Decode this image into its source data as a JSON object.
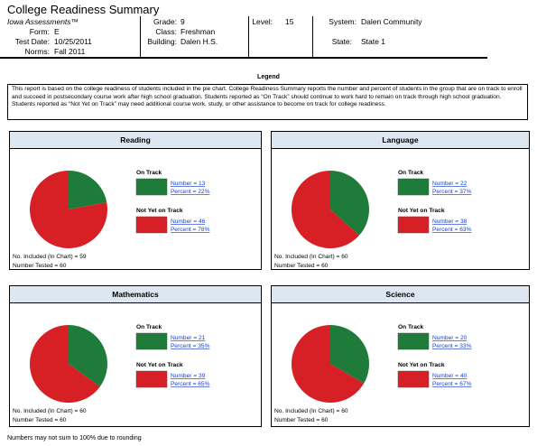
{
  "header": {
    "title": "College Readiness Summary",
    "assessment": "Iowa Assessments™",
    "fields": [
      {
        "label": "Form:",
        "value": "E"
      },
      {
        "label": "Test Date:",
        "value": "10/25/2011"
      },
      {
        "label": "Norms:",
        "value": "Fall 2011"
      },
      {
        "label": "Grade:",
        "value": "9"
      },
      {
        "label": "Class:",
        "value": "Freshman"
      },
      {
        "label": "Building:",
        "value": "Dalen H.S."
      },
      {
        "label": "Level:",
        "value": "15"
      },
      {
        "label": "System:",
        "value": "Dalen Community"
      },
      {
        "label": "State:",
        "value": "State 1"
      }
    ]
  },
  "legend": {
    "title": "Legend",
    "text": "This report is based on the college readiness of students included in the pie chart. College Readiness Summary reports the number and percent of students in the group that are on track to enroll and succeed in postsecondary course work after high school graduation. Students reported as “On Track” should continue to work hard to remain on track through high school graduation. Students reported as “Not Yet on Track” may need additional course work, study, or other assistance to become on track for college readiness."
  },
  "chart_data": [
    {
      "type": "pie",
      "title": "Reading",
      "categories": [
        "On Track",
        "Not Yet on Track"
      ],
      "colors": [
        "#1e7b3a",
        "#d71f26"
      ],
      "values": [
        13,
        46
      ],
      "value_labels": [
        "Number = 13",
        "Number = 46"
      ],
      "percent_labels": [
        "Percent = 22%",
        "Percent = 78%"
      ],
      "included": "No. Included (In Chart) = 59",
      "tested": "Number Tested = 60"
    },
    {
      "type": "pie",
      "title": "Language",
      "categories": [
        "On Track",
        "Not Yet on Track"
      ],
      "colors": [
        "#1e7b3a",
        "#d71f26"
      ],
      "values": [
        22,
        38
      ],
      "value_labels": [
        "Number = 22",
        "Number = 38"
      ],
      "percent_labels": [
        "Percent = 37%",
        "Percent = 63%"
      ],
      "included": "No. Included (In Chart) = 60",
      "tested": "Number Tested = 60"
    },
    {
      "type": "pie",
      "title": "Mathematics",
      "categories": [
        "On Track",
        "Not Yet on Track"
      ],
      "colors": [
        "#1e7b3a",
        "#d71f26"
      ],
      "values": [
        21,
        39
      ],
      "value_labels": [
        "Number = 21",
        "Number = 39"
      ],
      "percent_labels": [
        "Percent = 35%",
        "Percent = 65%"
      ],
      "included": "No. Included (In Chart) = 60",
      "tested": "Number Tested = 60"
    },
    {
      "type": "pie",
      "title": "Science",
      "categories": [
        "On Track",
        "Not Yet on Track"
      ],
      "colors": [
        "#1e7b3a",
        "#d71f26"
      ],
      "values": [
        20,
        40
      ],
      "value_labels": [
        "Number = 20",
        "Number = 40"
      ],
      "percent_labels": [
        "Percent = 33%",
        "Percent = 67%"
      ],
      "included": "No. Included (In Chart) = 60",
      "tested": "Number Tested = 60"
    }
  ],
  "footnote": "Numbers may not sum to 100% due to rounding"
}
